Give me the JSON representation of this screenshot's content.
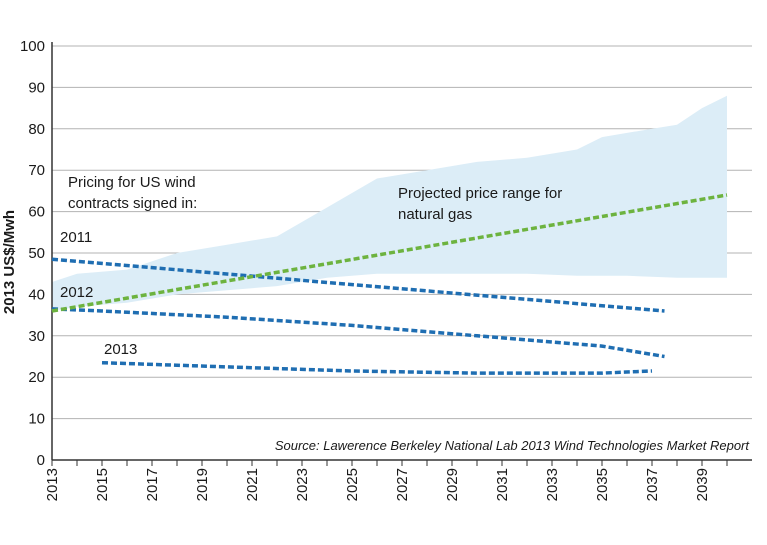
{
  "chart_data": {
    "type": "line",
    "title": "",
    "xlabel": "",
    "ylabel": "2013 US$/Mwh",
    "xlim": [
      2013,
      2041
    ],
    "ylim": [
      0,
      100
    ],
    "grid": true,
    "x_ticks": [
      2013,
      2015,
      2017,
      2019,
      2021,
      2023,
      2025,
      2027,
      2029,
      2031,
      2033,
      2035,
      2037,
      2039
    ],
    "y_ticks": [
      0,
      10,
      20,
      30,
      40,
      50,
      60,
      70,
      80,
      90,
      100
    ],
    "colors": {
      "band": "#dcedf7",
      "wind": "#1f6eb2",
      "gas": "#6db33f",
      "grid": "#b3b3b3",
      "axis": "#333333"
    },
    "band": {
      "name": "Projected price range for natural gas",
      "x": [
        2013,
        2014,
        2016,
        2018,
        2020,
        2022,
        2024,
        2026,
        2028,
        2030,
        2032,
        2034,
        2035,
        2036,
        2038,
        2039,
        2040
      ],
      "upper": [
        43,
        45,
        46,
        50,
        52,
        54,
        61,
        68,
        70,
        72,
        73,
        75,
        78,
        79,
        81,
        85,
        88
      ],
      "lower": [
        36,
        37,
        38,
        40,
        41,
        42,
        44,
        45,
        45,
        45,
        45,
        44.5,
        44.5,
        44.5,
        44,
        44,
        44
      ]
    },
    "series": [
      {
        "name": "2011",
        "x": [
          2013,
          2037.5
        ],
        "values": [
          48.5,
          36
        ]
      },
      {
        "name": "2012",
        "x": [
          2013,
          2015,
          2020,
          2025,
          2030,
          2035,
          2037.5
        ],
        "values": [
          36.5,
          36,
          34.5,
          32.5,
          30,
          27.5,
          25
        ]
      },
      {
        "name": "2013",
        "x": [
          2015,
          2020,
          2025,
          2030,
          2035,
          2037
        ],
        "values": [
          23.5,
          22.5,
          21.5,
          21,
          21,
          21.5
        ]
      },
      {
        "name": "Natural gas",
        "x": [
          2013,
          2040
        ],
        "values": [
          36,
          64
        ]
      }
    ],
    "annotations": {
      "pricing_line1": "Pricing for US wind",
      "pricing_line2": "contracts signed in:",
      "gas_line1": "Projected price range for",
      "gas_line2": "natural gas",
      "label_2011": "2011",
      "label_2012": "2012",
      "label_2013": "2013",
      "source": "Source: Lawerence Berkeley National Lab 2013 Wind Technologies Market Report"
    }
  }
}
